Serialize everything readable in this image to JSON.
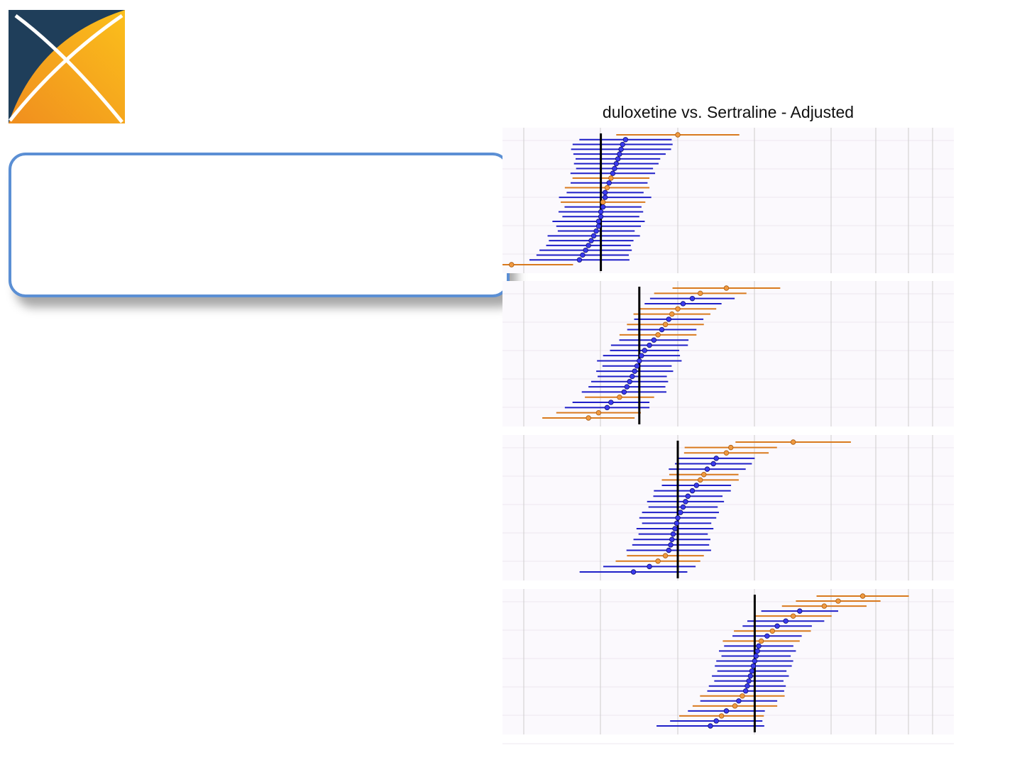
{
  "chart_data": {
    "type": "scatter",
    "title": "duloxetine vs. Sertraline - Adjusted",
    "xlabel": "",
    "ylabel": "",
    "grid": true,
    "reference_lines": [
      0.25,
      1.0,
      4.0,
      16.0
    ],
    "panels": [
      {
        "reference": 0.25,
        "estimates_ordered_top_to_bottom": [
          1.0,
          0.39,
          0.37,
          0.36,
          0.35,
          0.34,
          0.33,
          0.32,
          0.31,
          0.3,
          0.29,
          0.28,
          0.27,
          0.27,
          0.26,
          0.26,
          0.25,
          0.25,
          0.24,
          0.24,
          0.23,
          0.22,
          0.21,
          0.2,
          0.19,
          0.18,
          0.17,
          0.05
        ],
        "ci_half_width_log2": [
          1.6,
          1.2,
          1.3,
          1.3,
          1.2,
          1.1,
          1.1,
          1.0,
          1.1,
          1.0,
          1.0,
          1.1,
          1.0,
          1.2,
          1.1,
          1.0,
          1.1,
          1.0,
          1.2,
          1.1,
          1.0,
          1.2,
          1.1,
          1.1,
          1.2,
          1.2,
          1.3,
          1.6
        ],
        "negative_control": [
          false,
          true,
          true,
          true,
          true,
          true,
          true,
          true,
          true,
          false,
          true,
          false,
          true,
          true,
          false,
          true,
          true,
          true,
          true,
          true,
          true,
          true,
          true,
          true,
          true,
          true,
          true,
          false
        ]
      },
      {
        "reference": 0.5,
        "estimates_ordered_top_to_bottom": [
          2.4,
          1.5,
          1.3,
          1.1,
          1.0,
          0.9,
          0.85,
          0.8,
          0.75,
          0.7,
          0.65,
          0.6,
          0.55,
          0.52,
          0.5,
          0.48,
          0.46,
          0.44,
          0.42,
          0.4,
          0.38,
          0.35,
          0.3,
          0.28,
          0.24,
          0.2
        ],
        "ci_half_width_log2": [
          1.4,
          1.2,
          1.1,
          1.0,
          1.0,
          1.0,
          0.9,
          1.0,
          0.9,
          1.0,
          0.9,
          1.0,
          0.9,
          1.0,
          1.1,
          0.9,
          1.0,
          0.9,
          1.0,
          1.0,
          1.1,
          0.9,
          1.0,
          1.1,
          1.1,
          1.2
        ],
        "negative_control": [
          false,
          false,
          true,
          true,
          false,
          false,
          true,
          false,
          true,
          false,
          true,
          true,
          true,
          true,
          true,
          true,
          true,
          true,
          true,
          true,
          true,
          false,
          true,
          true,
          false,
          false
        ]
      },
      {
        "reference": 1.0,
        "estimates_ordered_top_to_bottom": [
          8.0,
          2.6,
          2.4,
          2.0,
          1.9,
          1.7,
          1.6,
          1.5,
          1.4,
          1.3,
          1.2,
          1.15,
          1.1,
          1.05,
          1.0,
          0.98,
          0.95,
          0.92,
          0.9,
          0.88,
          0.85,
          0.8,
          0.7,
          0.6,
          0.45
        ],
        "ci_half_width_log2": [
          1.5,
          1.2,
          1.1,
          1.0,
          1.0,
          1.0,
          0.9,
          1.0,
          0.9,
          1.0,
          0.9,
          1.0,
          0.9,
          1.0,
          1.0,
          0.9,
          1.0,
          0.9,
          1.0,
          1.0,
          1.1,
          1.0,
          1.1,
          1.2,
          1.4
        ],
        "negative_control": [
          false,
          false,
          false,
          true,
          true,
          true,
          false,
          false,
          true,
          true,
          true,
          true,
          true,
          true,
          true,
          true,
          true,
          true,
          true,
          true,
          true,
          false,
          false,
          true,
          true
        ]
      },
      {
        "reference": 4.0,
        "estimates_ordered_top_to_bottom": [
          28.0,
          18.0,
          14.0,
          9.0,
          8.0,
          7.0,
          6.0,
          5.5,
          5.0,
          4.5,
          4.3,
          4.2,
          4.1,
          4.0,
          3.9,
          3.8,
          3.7,
          3.6,
          3.5,
          3.4,
          3.2,
          3.0,
          2.8,
          2.4,
          2.2,
          2.0,
          1.8
        ],
        "ci_half_width_log2": [
          1.2,
          1.1,
          1.1,
          1.0,
          1.0,
          1.0,
          0.9,
          1.0,
          0.9,
          1.0,
          0.9,
          1.0,
          0.9,
          1.0,
          1.0,
          0.9,
          1.0,
          0.9,
          1.0,
          1.0,
          1.1,
          1.0,
          1.1,
          1.0,
          1.1,
          1.2,
          1.4
        ],
        "negative_control": [
          false,
          false,
          false,
          true,
          false,
          true,
          true,
          false,
          true,
          false,
          true,
          true,
          true,
          true,
          true,
          true,
          true,
          true,
          true,
          true,
          false,
          true,
          false,
          true,
          false,
          true,
          true
        ]
      }
    ]
  },
  "colors": {
    "negative_control": "#1f1fc8",
    "negative_control_point": "#3a3aee",
    "positive_control": "#d97a1e",
    "positive_control_point": "#f09a40",
    "reference_line": "#000000",
    "panel_background": "#fbf9fd",
    "grid": "#cccccc",
    "callout_border": "#5b8fd4",
    "arrow_fill": "#94b4dc",
    "arrow_border": "#5b8fd4",
    "logo_dark": "#1f3e5a",
    "logo_orange": "#f08e1e",
    "logo_yellow": "#fbbf1c"
  }
}
